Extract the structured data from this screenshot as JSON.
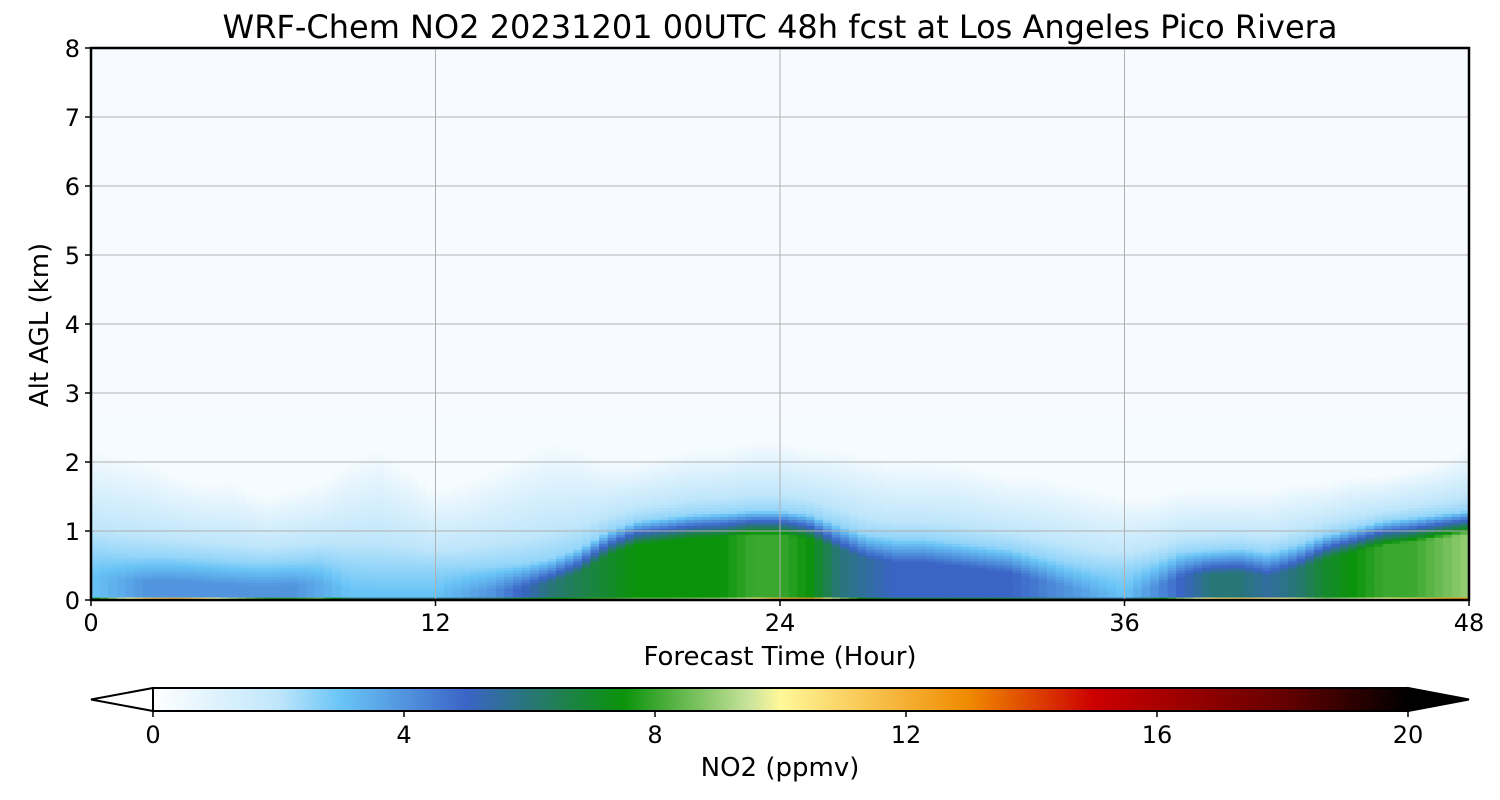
{
  "chart_data": {
    "type": "heatmap",
    "title": "WRF-Chem NO2  20231201 00UTC 48h fcst at Los Angeles Pico Rivera",
    "xlabel": "Forecast Time (Hour)",
    "ylabel": "Alt AGL (km)",
    "xlim": [
      0,
      48
    ],
    "ylim": [
      0,
      8
    ],
    "xticks": [
      0,
      12,
      24,
      36,
      48
    ],
    "yticks": [
      0,
      1,
      2,
      3,
      4,
      5,
      6,
      7,
      8
    ],
    "grid": true,
    "background_color": "#f7fbff",
    "colorbar": {
      "label": "NO2  (ppmv)",
      "min": 0,
      "max": 20,
      "ticks": [
        0,
        4,
        8,
        12,
        16,
        20
      ],
      "extend": "both",
      "color_stops": [
        {
          "value": 0,
          "color": "#ffffff"
        },
        {
          "value": 2,
          "color": "#bfe6fb"
        },
        {
          "value": 3,
          "color": "#69c4f6"
        },
        {
          "value": 5,
          "color": "#3a64c6"
        },
        {
          "value": 6.5,
          "color": "#1f8050"
        },
        {
          "value": 7.5,
          "color": "#0a930a"
        },
        {
          "value": 9.5,
          "color": "#c9e39b"
        },
        {
          "value": 10,
          "color": "#fff899"
        },
        {
          "value": 13,
          "color": "#f08a00"
        },
        {
          "value": 15,
          "color": "#cc0000"
        },
        {
          "value": 18,
          "color": "#660000"
        },
        {
          "value": 20,
          "color": "#000000"
        }
      ]
    },
    "hours": [
      0,
      1,
      2,
      3,
      4,
      5,
      6,
      7,
      8,
      9,
      10,
      11,
      12,
      13,
      14,
      15,
      16,
      17,
      18,
      19,
      20,
      21,
      22,
      23,
      24,
      25,
      26,
      27,
      28,
      29,
      30,
      31,
      32,
      33,
      34,
      35,
      36,
      37,
      38,
      39,
      40,
      41,
      42,
      43,
      44,
      45,
      46,
      47,
      48
    ],
    "surface_value_ppmv": [
      9,
      13,
      15,
      16,
      14,
      12,
      10,
      10,
      11,
      8,
      7.5,
      7.5,
      7.5,
      7.5,
      7.5,
      8,
      8,
      8.5,
      8.5,
      9,
      9,
      9.5,
      10,
      11,
      14,
      15,
      11,
      8,
      7.5,
      7.5,
      7.5,
      7.5,
      7.5,
      7.5,
      7,
      7,
      7,
      8,
      11,
      13,
      14,
      13,
      12,
      10,
      10.5,
      11,
      12,
      14,
      15
    ],
    "pbl_height_km": [
      0.35,
      0.3,
      0.28,
      0.28,
      0.25,
      0.22,
      0.2,
      0.22,
      0.25,
      0.15,
      0.12,
      0.12,
      0.12,
      0.13,
      0.15,
      0.18,
      0.25,
      0.4,
      0.65,
      0.8,
      0.85,
      0.9,
      0.92,
      0.95,
      0.95,
      0.9,
      0.75,
      0.6,
      0.55,
      0.55,
      0.5,
      0.45,
      0.4,
      0.3,
      0.2,
      0.12,
      0.1,
      0.2,
      0.35,
      0.38,
      0.4,
      0.35,
      0.45,
      0.6,
      0.7,
      0.8,
      0.85,
      0.9,
      0.95
    ],
    "mixed_layer_value_ppmv": [
      3,
      3.5,
      4,
      4,
      4,
      4,
      4,
      4,
      3.5,
      3,
      3,
      3,
      3,
      3.5,
      4,
      5,
      6,
      6.5,
      7,
      7.5,
      7.5,
      7.5,
      7.5,
      8,
      8,
      7.5,
      6,
      5.5,
      5,
      5,
      5,
      5,
      5,
      4.5,
      4,
      3.5,
      3,
      4,
      5,
      6,
      6,
      5.5,
      6,
      7,
      7.5,
      8,
      8,
      8.5,
      9
    ],
    "haze_top_km": [
      2.2,
      2.1,
      2.0,
      1.8,
      1.7,
      1.7,
      1.5,
      1.6,
      1.7,
      2.0,
      2.2,
      1.9,
      1.6,
      1.7,
      1.9,
      2.1,
      2.3,
      2.2,
      2.0,
      2.0,
      2.1,
      2.2,
      2.2,
      2.3,
      2.3,
      2.2,
      2.2,
      2.1,
      2.0,
      2.0,
      2.0,
      1.9,
      1.8,
      1.8,
      1.7,
      1.6,
      1.5,
      1.5,
      1.6,
      1.6,
      1.6,
      1.6,
      1.7,
      1.7,
      1.8,
      1.8,
      1.9,
      2.0,
      2.2
    ]
  }
}
